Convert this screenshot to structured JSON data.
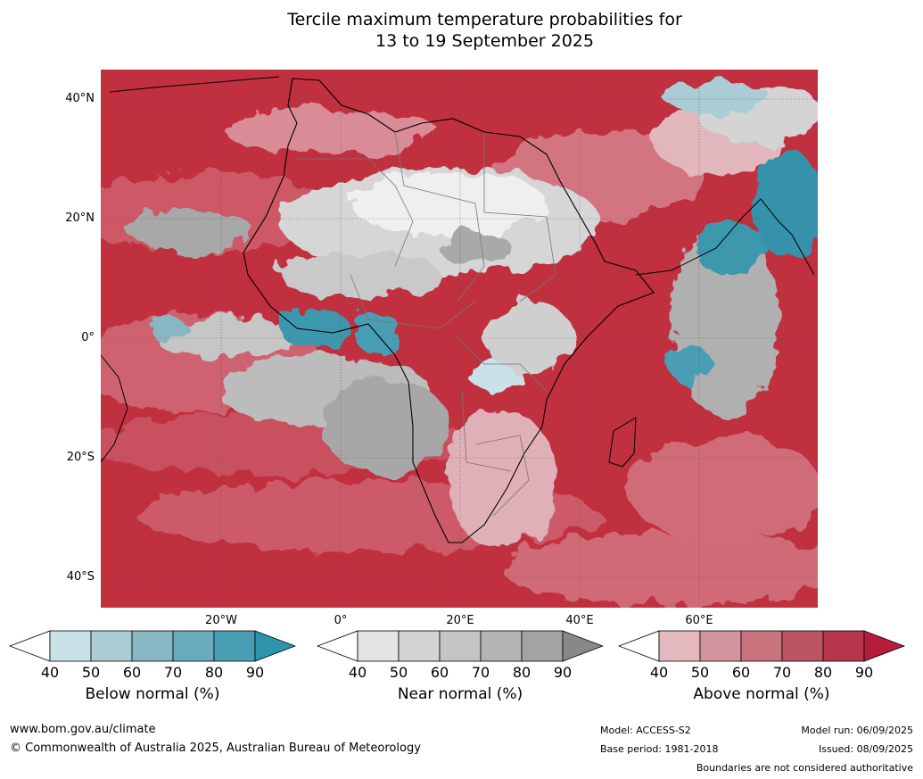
{
  "title_line1": "Tercile maximum temperature probabilities for",
  "title_line2": "13 to 19 September 2025",
  "lat_labels": [
    "40°N",
    "20°N",
    "0°",
    "20°S",
    "40°S"
  ],
  "lon_labels": [
    "20°W",
    "0°",
    "20°E",
    "40°E",
    "60°E"
  ],
  "legends": [
    {
      "title": "Below normal (%)",
      "ticks": [
        "40",
        "50",
        "60",
        "70",
        "80",
        "90"
      ],
      "colors": [
        "#ffffff",
        "#c9e2e8",
        "#a9ccd5",
        "#88b7c4",
        "#69aabb",
        "#4a9eb3",
        "#2f93ac"
      ]
    },
    {
      "title": "Near normal (%)",
      "ticks": [
        "40",
        "50",
        "60",
        "70",
        "80",
        "90"
      ],
      "colors": [
        "#ffffff",
        "#e4e4e4",
        "#d3d3d3",
        "#c4c4c4",
        "#b4b4b4",
        "#a3a3a3",
        "#888888"
      ]
    },
    {
      "title": "Above normal (%)",
      "ticks": [
        "40",
        "50",
        "60",
        "70",
        "80",
        "90"
      ],
      "colors": [
        "#ffffff",
        "#e3b8bf",
        "#d3949d",
        "#c9737e",
        "#bd5463",
        "#b5354a",
        "#b71d3a"
      ]
    }
  ],
  "footer": {
    "website": "www.bom.gov.au/climate",
    "copyright": "© Commonwealth of Australia 2025, Australian Bureau of Meteorology",
    "model": "Model: ACCESS-S2",
    "base_period": "Base period: 1981-2018",
    "model_run": "Model run: 06/09/2025",
    "issued": "Issued: 08/09/2025",
    "disclaimer": "Boundaries are not considered authoritative"
  }
}
